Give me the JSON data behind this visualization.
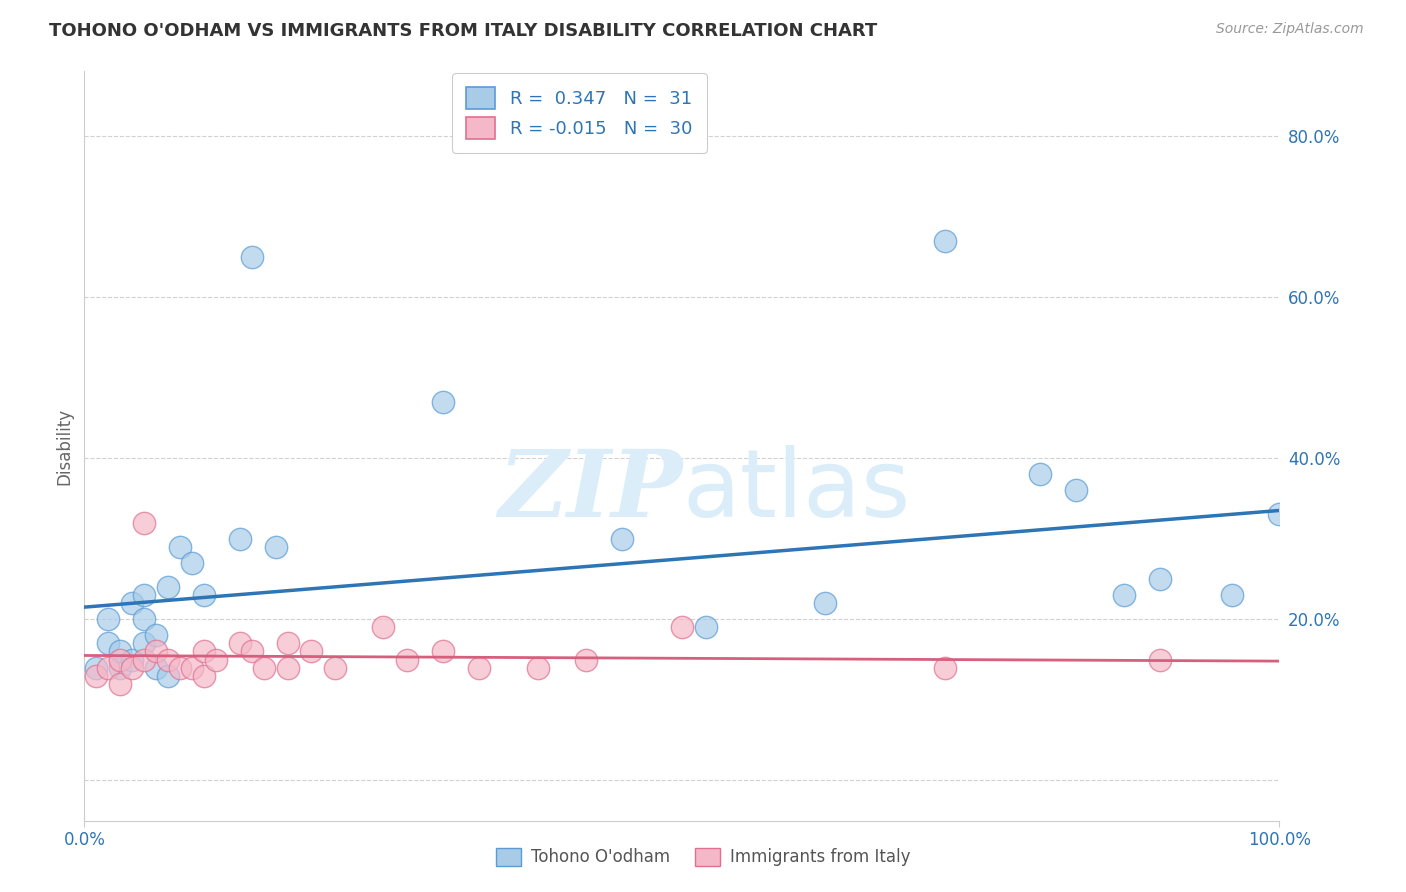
{
  "title": "TOHONO O'ODHAM VS IMMIGRANTS FROM ITALY DISABILITY CORRELATION CHART",
  "source": "Source: ZipAtlas.com",
  "ylabel": "Disability",
  "xlim": [
    0,
    1.0
  ],
  "ylim": [
    -0.05,
    0.88
  ],
  "y_ticks": [
    0.0,
    0.2,
    0.4,
    0.6,
    0.8
  ],
  "y_tick_labels": [
    "",
    "20.0%",
    "40.0%",
    "60.0%",
    "80.0%"
  ],
  "blue_R": "0.347",
  "blue_N": "31",
  "pink_R": "-0.015",
  "pink_N": "30",
  "blue_color": "#a8cce8",
  "pink_color": "#f5b8c8",
  "blue_edge_color": "#5b9bd5",
  "pink_edge_color": "#e07090",
  "blue_line_color": "#2e75b6",
  "pink_line_color": "#d75f7e",
  "watermark_color": "#daedf8",
  "grid_color": "#cccccc",
  "bg_color": "#ffffff",
  "legend_label_blue": "Tohono O'odham",
  "legend_label_pink": "Immigrants from Italy",
  "blue_scatter_x": [
    0.01,
    0.02,
    0.02,
    0.03,
    0.03,
    0.04,
    0.04,
    0.05,
    0.05,
    0.05,
    0.06,
    0.06,
    0.07,
    0.07,
    0.08,
    0.09,
    0.1,
    0.13,
    0.14,
    0.16,
    0.3,
    0.45,
    0.52,
    0.62,
    0.72,
    0.8,
    0.83,
    0.87,
    0.9,
    0.96,
    1.0
  ],
  "blue_scatter_y": [
    0.14,
    0.17,
    0.2,
    0.14,
    0.16,
    0.15,
    0.22,
    0.17,
    0.2,
    0.23,
    0.18,
    0.14,
    0.13,
    0.24,
    0.29,
    0.27,
    0.23,
    0.3,
    0.65,
    0.29,
    0.47,
    0.3,
    0.19,
    0.22,
    0.67,
    0.38,
    0.36,
    0.23,
    0.25,
    0.23,
    0.33
  ],
  "pink_scatter_x": [
    0.01,
    0.02,
    0.03,
    0.03,
    0.04,
    0.05,
    0.05,
    0.06,
    0.07,
    0.08,
    0.09,
    0.1,
    0.1,
    0.11,
    0.13,
    0.14,
    0.15,
    0.17,
    0.17,
    0.19,
    0.21,
    0.25,
    0.27,
    0.3,
    0.33,
    0.38,
    0.42,
    0.5,
    0.72,
    0.9
  ],
  "pink_scatter_y": [
    0.13,
    0.14,
    0.12,
    0.15,
    0.14,
    0.32,
    0.15,
    0.16,
    0.15,
    0.14,
    0.14,
    0.13,
    0.16,
    0.15,
    0.17,
    0.16,
    0.14,
    0.17,
    0.14,
    0.16,
    0.14,
    0.19,
    0.15,
    0.16,
    0.14,
    0.14,
    0.15,
    0.19,
    0.14,
    0.15
  ],
  "blue_line_y_start": 0.215,
  "blue_line_y_end": 0.335,
  "pink_line_y_start": 0.155,
  "pink_line_y_end": 0.148,
  "x_tick_left": "0.0%",
  "x_tick_right": "100.0%"
}
